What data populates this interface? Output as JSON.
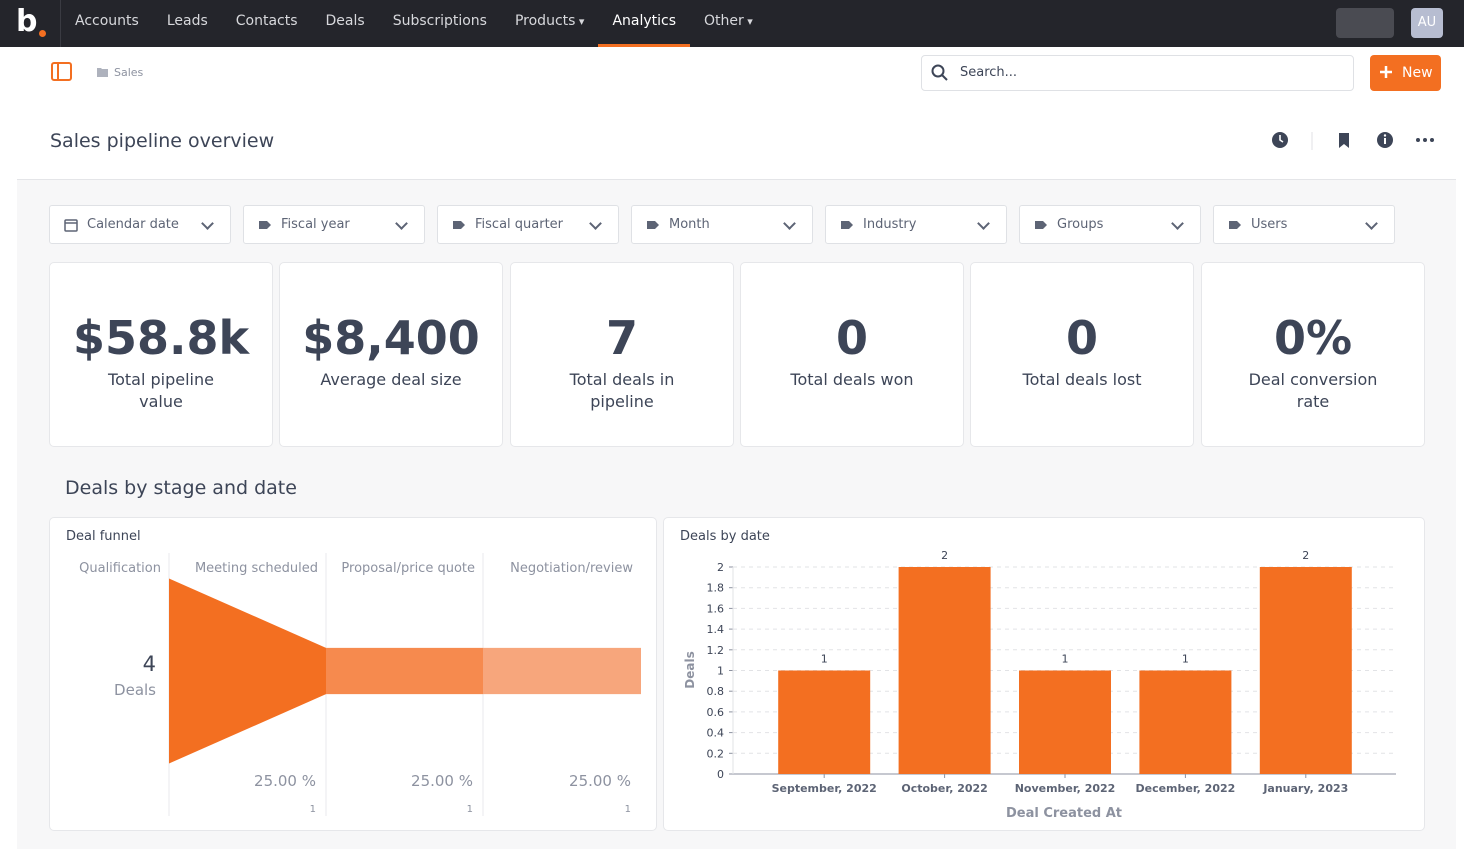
{
  "nav": {
    "logo": "b",
    "items": [
      "Accounts",
      "Leads",
      "Contacts",
      "Deals",
      "Subscriptions",
      "Products",
      "Analytics",
      "Other"
    ],
    "active": 6,
    "dropdowns": [
      5,
      7
    ],
    "avatar": "AU"
  },
  "toolbar": {
    "breadcrumb": "Sales",
    "search_placeholder": "Search...",
    "new_button": "New"
  },
  "header": {
    "title": "Sales pipeline overview"
  },
  "filters": [
    "Calendar date",
    "Fiscal year",
    "Fiscal quarter",
    "Month",
    "Industry",
    "Groups",
    "Users"
  ],
  "kpis": [
    {
      "value": "$58.8k",
      "label": "Total pipeline value"
    },
    {
      "value": "$8,400",
      "label": "Average deal size"
    },
    {
      "value": "7",
      "label": "Total deals in pipeline"
    },
    {
      "value": "0",
      "label": "Total deals won"
    },
    {
      "value": "0",
      "label": "Total deals lost"
    },
    {
      "value": "0%",
      "label": "Deal conversion rate"
    }
  ],
  "section": {
    "title": "Deals by stage and date"
  },
  "chart_data": [
    {
      "type": "funnel",
      "title": "Deal funnel",
      "categories": [
        "Qualification",
        "Meeting scheduled",
        "Proposal/price quote",
        "Negotiation/review"
      ],
      "values": [
        4,
        1,
        1,
        1
      ],
      "unit_label": "Deals",
      "conversion": [
        null,
        25,
        25,
        25
      ],
      "conversion_labels": [
        null,
        "25.00 %",
        "25.00 %",
        "25.00 %"
      ],
      "colors": [
        "#f36f21",
        "#f68a4e",
        "#f7a67c"
      ]
    },
    {
      "type": "bar",
      "title": "Deals by date",
      "categories": [
        "September, 2022",
        "October, 2022",
        "November, 2022",
        "December, 2022",
        "January, 2023"
      ],
      "values": [
        1,
        2,
        1,
        1,
        2
      ],
      "color": "#f36f21",
      "ylim": [
        0,
        2
      ],
      "yticks": [
        0,
        0.2,
        0.4,
        0.6,
        0.8,
        1,
        1.2,
        1.4,
        1.6,
        1.8,
        2
      ],
      "xlabel": "Deal Created At",
      "ylabel": "Deals",
      "grid": true
    }
  ]
}
